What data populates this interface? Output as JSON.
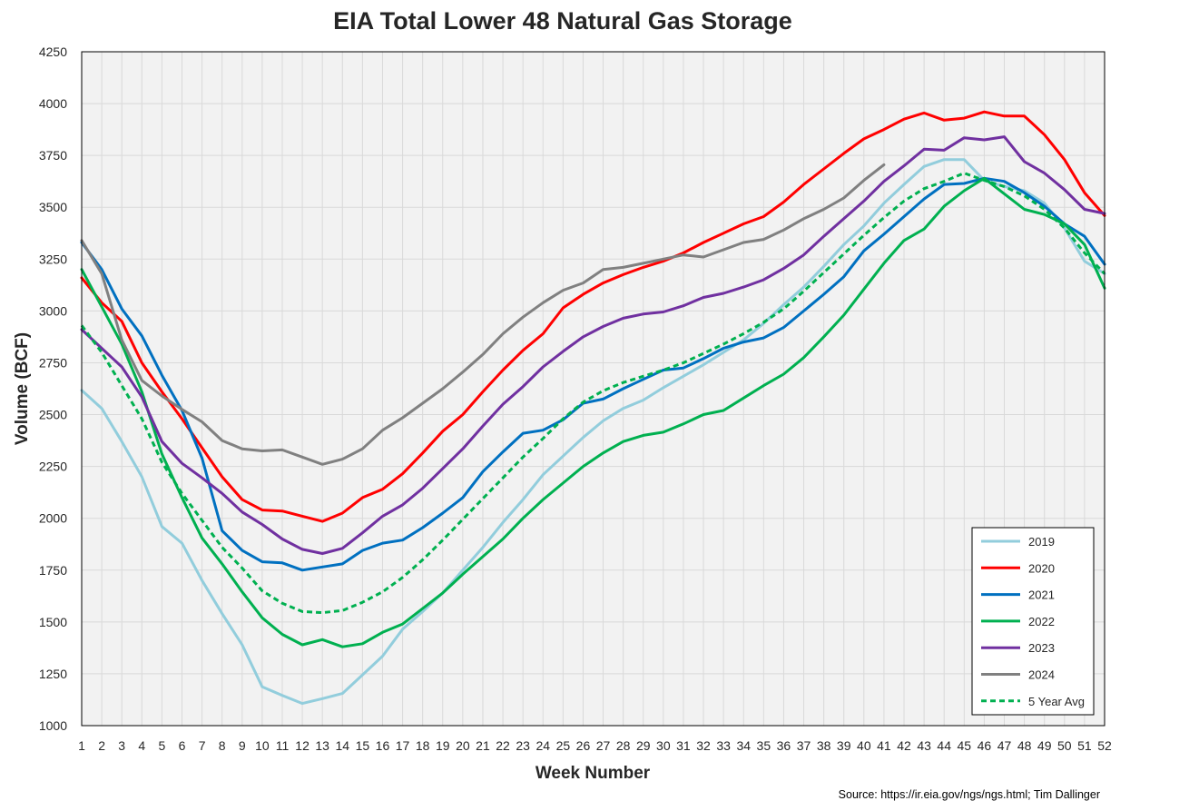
{
  "chart_data": {
    "type": "line",
    "title": "EIA Total Lower 48 Natural Gas Storage",
    "xlabel": "Week Number",
    "ylabel": "Volume (BCF)",
    "source": "Source: https://ir.eia.gov/ngs/ngs.html; Tim Dallinger",
    "xlim": [
      1,
      52
    ],
    "ylim": [
      1000,
      4250
    ],
    "y_ticks": [
      1000,
      1250,
      1500,
      1750,
      2000,
      2250,
      2500,
      2750,
      3000,
      3250,
      3500,
      3750,
      4000,
      4250
    ],
    "x_ticks": [
      1,
      2,
      3,
      4,
      5,
      6,
      7,
      8,
      9,
      10,
      11,
      12,
      13,
      14,
      15,
      16,
      17,
      18,
      19,
      20,
      21,
      22,
      23,
      24,
      25,
      26,
      27,
      28,
      29,
      30,
      31,
      32,
      33,
      34,
      35,
      36,
      37,
      38,
      39,
      40,
      41,
      42,
      43,
      44,
      45,
      46,
      47,
      48,
      49,
      50,
      51,
      52
    ],
    "grid": "vertical",
    "legend_position": "bottom-right",
    "series": [
      {
        "name": "2019",
        "color": "#92CDDC",
        "dash": false,
        "values": [
          2617,
          2530,
          2370,
          2200,
          1960,
          1880,
          1700,
          1540,
          1390,
          1187,
          1146,
          1107,
          1130,
          1155,
          1245,
          1335,
          1465,
          1550,
          1640,
          1750,
          1860,
          1980,
          2090,
          2210,
          2300,
          2390,
          2470,
          2530,
          2570,
          2630,
          2685,
          2740,
          2800,
          2860,
          2940,
          3030,
          3115,
          3215,
          3320,
          3410,
          3520,
          3610,
          3697,
          3730,
          3730,
          3630,
          3600,
          3580,
          3520,
          3400,
          3240,
          3180
        ]
      },
      {
        "name": "2020",
        "color": "#FF0000",
        "dash": false,
        "values": [
          3160,
          3040,
          2950,
          2750,
          2610,
          2480,
          2340,
          2200,
          2090,
          2040,
          2035,
          2010,
          1985,
          2025,
          2100,
          2140,
          2215,
          2315,
          2420,
          2500,
          2610,
          2715,
          2810,
          2890,
          3015,
          3080,
          3135,
          3175,
          3210,
          3240,
          3280,
          3330,
          3375,
          3420,
          3455,
          3525,
          3610,
          3685,
          3760,
          3830,
          3875,
          3925,
          3955,
          3920,
          3930,
          3960,
          3940,
          3940,
          3850,
          3730,
          3570,
          3460
        ]
      },
      {
        "name": "2021",
        "color": "#0070C0",
        "dash": false,
        "values": [
          3330,
          3200,
          3010,
          2880,
          2690,
          2520,
          2290,
          1940,
          1845,
          1790,
          1785,
          1750,
          1765,
          1780,
          1845,
          1880,
          1895,
          1955,
          2025,
          2100,
          2225,
          2320,
          2410,
          2425,
          2475,
          2555,
          2575,
          2625,
          2670,
          2715,
          2725,
          2770,
          2820,
          2850,
          2870,
          2920,
          3000,
          3080,
          3165,
          3290,
          3370,
          3455,
          3540,
          3610,
          3615,
          3640,
          3625,
          3570,
          3505,
          3420,
          3360,
          3225
        ]
      },
      {
        "name": "2022",
        "color": "#00B050",
        "dash": false,
        "values": [
          3200,
          3020,
          2840,
          2610,
          2310,
          2100,
          1905,
          1780,
          1645,
          1520,
          1440,
          1390,
          1415,
          1380,
          1395,
          1450,
          1490,
          1565,
          1640,
          1730,
          1815,
          1900,
          2000,
          2090,
          2170,
          2250,
          2315,
          2370,
          2400,
          2415,
          2455,
          2500,
          2520,
          2580,
          2640,
          2695,
          2775,
          2875,
          2980,
          3105,
          3230,
          3340,
          3395,
          3505,
          3580,
          3640,
          3565,
          3490,
          3465,
          3420,
          3320,
          3110
        ]
      },
      {
        "name": "2023",
        "color": "#7030A0",
        "dash": false,
        "values": [
          2910,
          2820,
          2730,
          2585,
          2370,
          2265,
          2195,
          2120,
          2030,
          1970,
          1900,
          1850,
          1830,
          1855,
          1930,
          2010,
          2065,
          2145,
          2240,
          2335,
          2445,
          2550,
          2635,
          2730,
          2805,
          2875,
          2925,
          2965,
          2985,
          2995,
          3025,
          3065,
          3085,
          3115,
          3150,
          3205,
          3270,
          3360,
          3445,
          3530,
          3625,
          3700,
          3780,
          3775,
          3835,
          3825,
          3840,
          3720,
          3665,
          3585,
          3490,
          3470
        ]
      },
      {
        "name": "2024",
        "color": "#808080",
        "dash": false,
        "values": [
          3340,
          3180,
          2860,
          2665,
          2590,
          2525,
          2465,
          2375,
          2335,
          2325,
          2330,
          2295,
          2260,
          2285,
          2335,
          2425,
          2485,
          2555,
          2625,
          2705,
          2790,
          2890,
          2970,
          3040,
          3100,
          3135,
          3200,
          3210,
          3230,
          3250,
          3270,
          3260,
          3295,
          3330,
          3345,
          3390,
          3445,
          3490,
          3545,
          3630,
          3705
        ]
      },
      {
        "name": "5 Year Avg",
        "color": "#00B050",
        "dash": true,
        "values": [
          2930,
          2800,
          2640,
          2480,
          2270,
          2120,
          1990,
          1860,
          1760,
          1650,
          1590,
          1550,
          1545,
          1555,
          1595,
          1645,
          1715,
          1800,
          1895,
          1995,
          2095,
          2195,
          2295,
          2385,
          2480,
          2560,
          2615,
          2655,
          2685,
          2715,
          2750,
          2795,
          2840,
          2890,
          2945,
          3010,
          3095,
          3185,
          3275,
          3365,
          3450,
          3530,
          3590,
          3625,
          3665,
          3630,
          3600,
          3555,
          3490,
          3400,
          3280,
          3180
        ]
      }
    ]
  }
}
